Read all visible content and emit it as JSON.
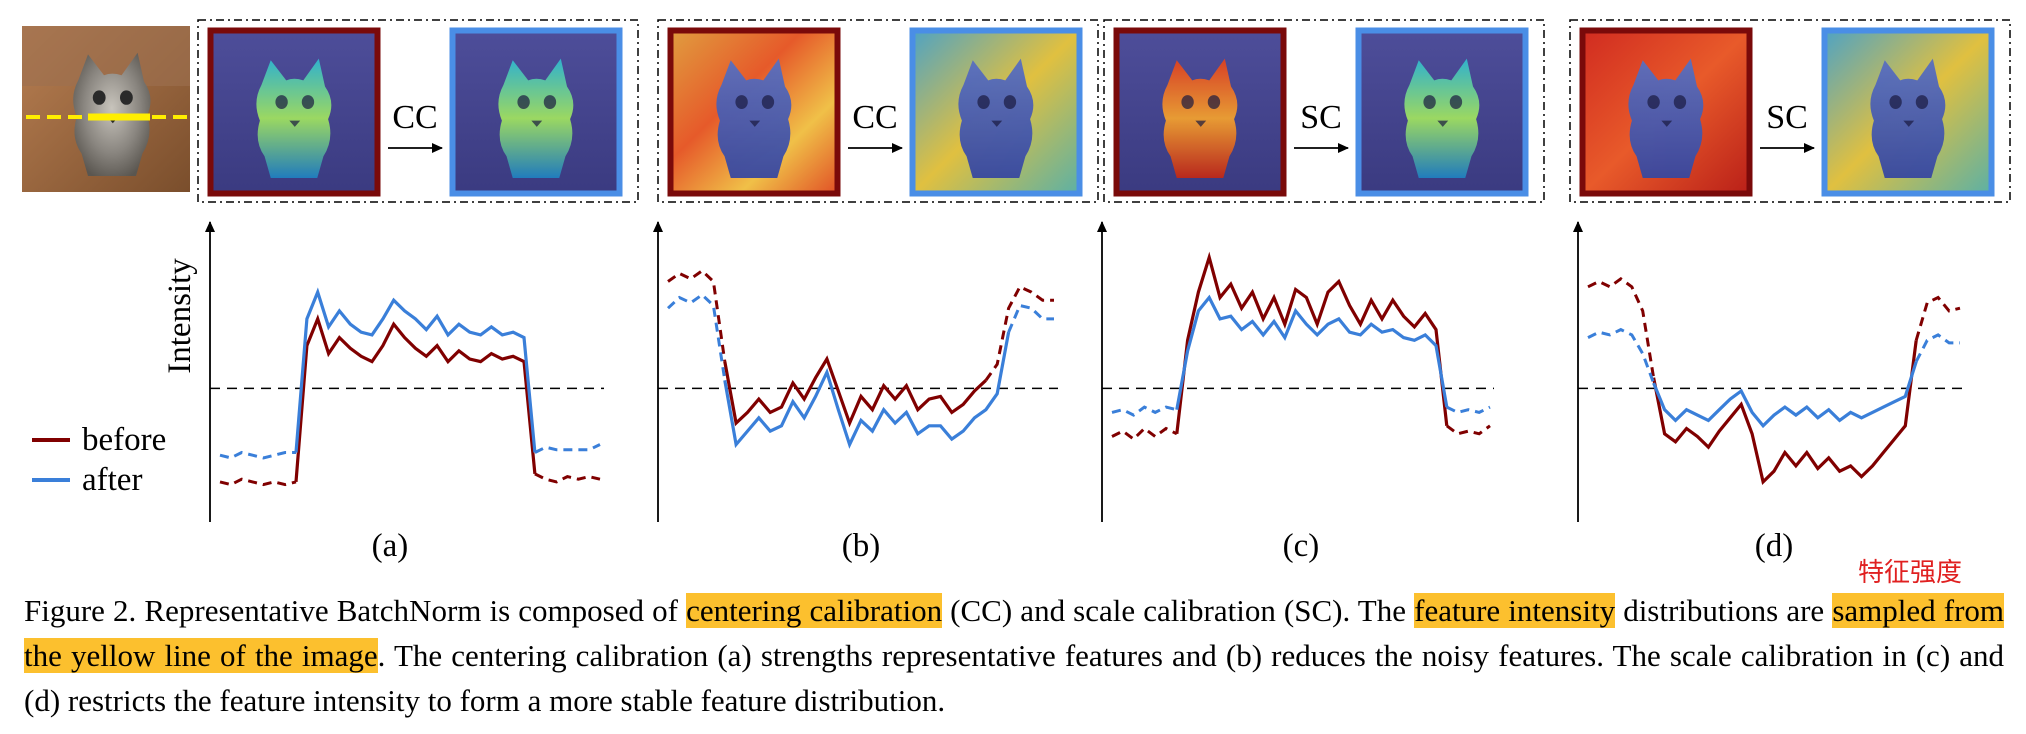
{
  "figure": {
    "panels": [
      {
        "id": "a",
        "label": "(a)",
        "op": "CC"
      },
      {
        "id": "b",
        "label": "(b)",
        "op": "CC"
      },
      {
        "id": "c",
        "label": "(c)",
        "op": "SC"
      },
      {
        "id": "d",
        "label": "(d)",
        "op": "SC"
      }
    ],
    "ylabel": "Intensity",
    "legend": [
      {
        "name": "before",
        "color": "#800000"
      },
      {
        "name": "after",
        "color": "#3a7fd9"
      }
    ],
    "colors": {
      "before_frame": "#7a0a0a",
      "after_frame": "#4a8ee6",
      "sample_line": "#ffee00"
    },
    "annotation": "特征强度"
  },
  "caption": {
    "part1": "Figure 2. Representative BatchNorm is composed of ",
    "hl1": "centering calibration",
    "part2": " (CC) and scale calibration (SC). The ",
    "hl2": "feature intensity",
    "part3": " distributions are ",
    "hl3": "sampled from the yellow line of the image",
    "part4": ".  The centering calibration (a) strengths representative features and (b) reduces the noisy features. The scale calibration in (c) and (d) restricts the feature intensity to form a more stable feature distribution."
  },
  "chart_data": [
    {
      "type": "line",
      "panel": "(a)",
      "series": [
        {
          "name": "before",
          "values": [
            1.5,
            1.4,
            1.6,
            1.5,
            1.4,
            1.5,
            1.4,
            1.5,
            6.6,
            7.6,
            6.3,
            6.9,
            6.5,
            6.2,
            6.0,
            6.6,
            7.4,
            6.9,
            6.5,
            6.2,
            6.6,
            6.0,
            6.4,
            6.1,
            6.0,
            6.3,
            6.1,
            6.2,
            6.0,
            1.8,
            1.6,
            1.5,
            1.7,
            1.6,
            1.7,
            1.6
          ]
        },
        {
          "name": "after",
          "values": [
            2.5,
            2.4,
            2.6,
            2.5,
            2.4,
            2.5,
            2.6,
            2.6,
            7.6,
            8.6,
            7.3,
            7.9,
            7.4,
            7.1,
            7.0,
            7.6,
            8.3,
            7.9,
            7.6,
            7.2,
            7.7,
            7.0,
            7.4,
            7.1,
            7.0,
            7.3,
            7.0,
            7.1,
            6.9,
            2.6,
            2.8,
            2.7,
            2.7,
            2.7,
            2.7,
            2.9
          ]
        }
      ]
    },
    {
      "type": "line",
      "panel": "(b)",
      "series": [
        {
          "name": "before",
          "values": [
            9.0,
            9.3,
            9.1,
            9.4,
            9.0,
            6.0,
            3.7,
            4.1,
            4.6,
            4.1,
            4.3,
            5.2,
            4.6,
            5.4,
            6.1,
            4.9,
            3.7,
            4.7,
            4.2,
            5.1,
            4.6,
            5.1,
            4.2,
            4.6,
            4.7,
            4.1,
            4.4,
            4.9,
            5.3,
            5.9,
            8.0,
            8.8,
            8.6,
            8.3,
            8.3
          ]
        },
        {
          "name": "after",
          "values": [
            8.0,
            8.4,
            8.2,
            8.5,
            8.1,
            5.3,
            2.9,
            3.4,
            3.9,
            3.4,
            3.6,
            4.5,
            3.9,
            4.7,
            5.6,
            4.2,
            2.9,
            3.8,
            3.4,
            4.2,
            3.7,
            4.1,
            3.3,
            3.6,
            3.6,
            3.1,
            3.4,
            3.9,
            4.2,
            4.8,
            7.1,
            8.1,
            8.0,
            7.6,
            7.6
          ]
        }
      ]
    },
    {
      "type": "line",
      "panel": "(c)",
      "series": [
        {
          "name": "before",
          "values": [
            3.2,
            3.4,
            3.1,
            3.5,
            3.2,
            3.5,
            3.3,
            6.8,
            8.6,
            9.9,
            8.4,
            8.9,
            8.0,
            8.6,
            7.6,
            8.4,
            7.4,
            8.7,
            8.4,
            7.4,
            8.6,
            9.0,
            8.1,
            7.4,
            8.3,
            7.6,
            8.3,
            7.7,
            7.3,
            7.8,
            7.2,
            3.6,
            3.3,
            3.4,
            3.3,
            3.6
          ]
        },
        {
          "name": "after",
          "values": [
            4.1,
            4.2,
            4.0,
            4.3,
            4.1,
            4.3,
            4.2,
            6.4,
            7.9,
            8.4,
            7.6,
            7.7,
            7.2,
            7.5,
            7.0,
            7.5,
            6.9,
            7.9,
            7.4,
            7.0,
            7.4,
            7.6,
            7.1,
            7.0,
            7.4,
            7.1,
            7.2,
            6.9,
            6.8,
            7.0,
            6.6,
            4.3,
            4.1,
            4.2,
            4.1,
            4.3
          ]
        }
      ]
    },
    {
      "type": "line",
      "panel": "(d)",
      "series": [
        {
          "name": "before",
          "values": [
            8.8,
            9.0,
            8.8,
            9.1,
            8.8,
            7.9,
            5.4,
            3.3,
            3.0,
            3.5,
            3.2,
            2.8,
            3.4,
            3.9,
            4.4,
            3.3,
            1.5,
            1.9,
            2.6,
            2.1,
            2.6,
            2.0,
            2.4,
            1.9,
            2.1,
            1.7,
            2.1,
            2.6,
            3.1,
            3.6,
            6.8,
            8.2,
            8.4,
            7.9,
            8.0
          ]
        },
        {
          "name": "after",
          "values": [
            6.9,
            7.1,
            7.0,
            7.2,
            7.0,
            6.3,
            5.2,
            4.2,
            3.8,
            4.2,
            4.0,
            3.8,
            4.2,
            4.6,
            4.9,
            4.1,
            3.6,
            4.0,
            4.3,
            4.0,
            4.3,
            3.9,
            4.2,
            3.8,
            4.1,
            3.9,
            4.1,
            4.3,
            4.5,
            4.7,
            6.0,
            6.8,
            7.0,
            6.7,
            6.7
          ]
        }
      ]
    }
  ]
}
